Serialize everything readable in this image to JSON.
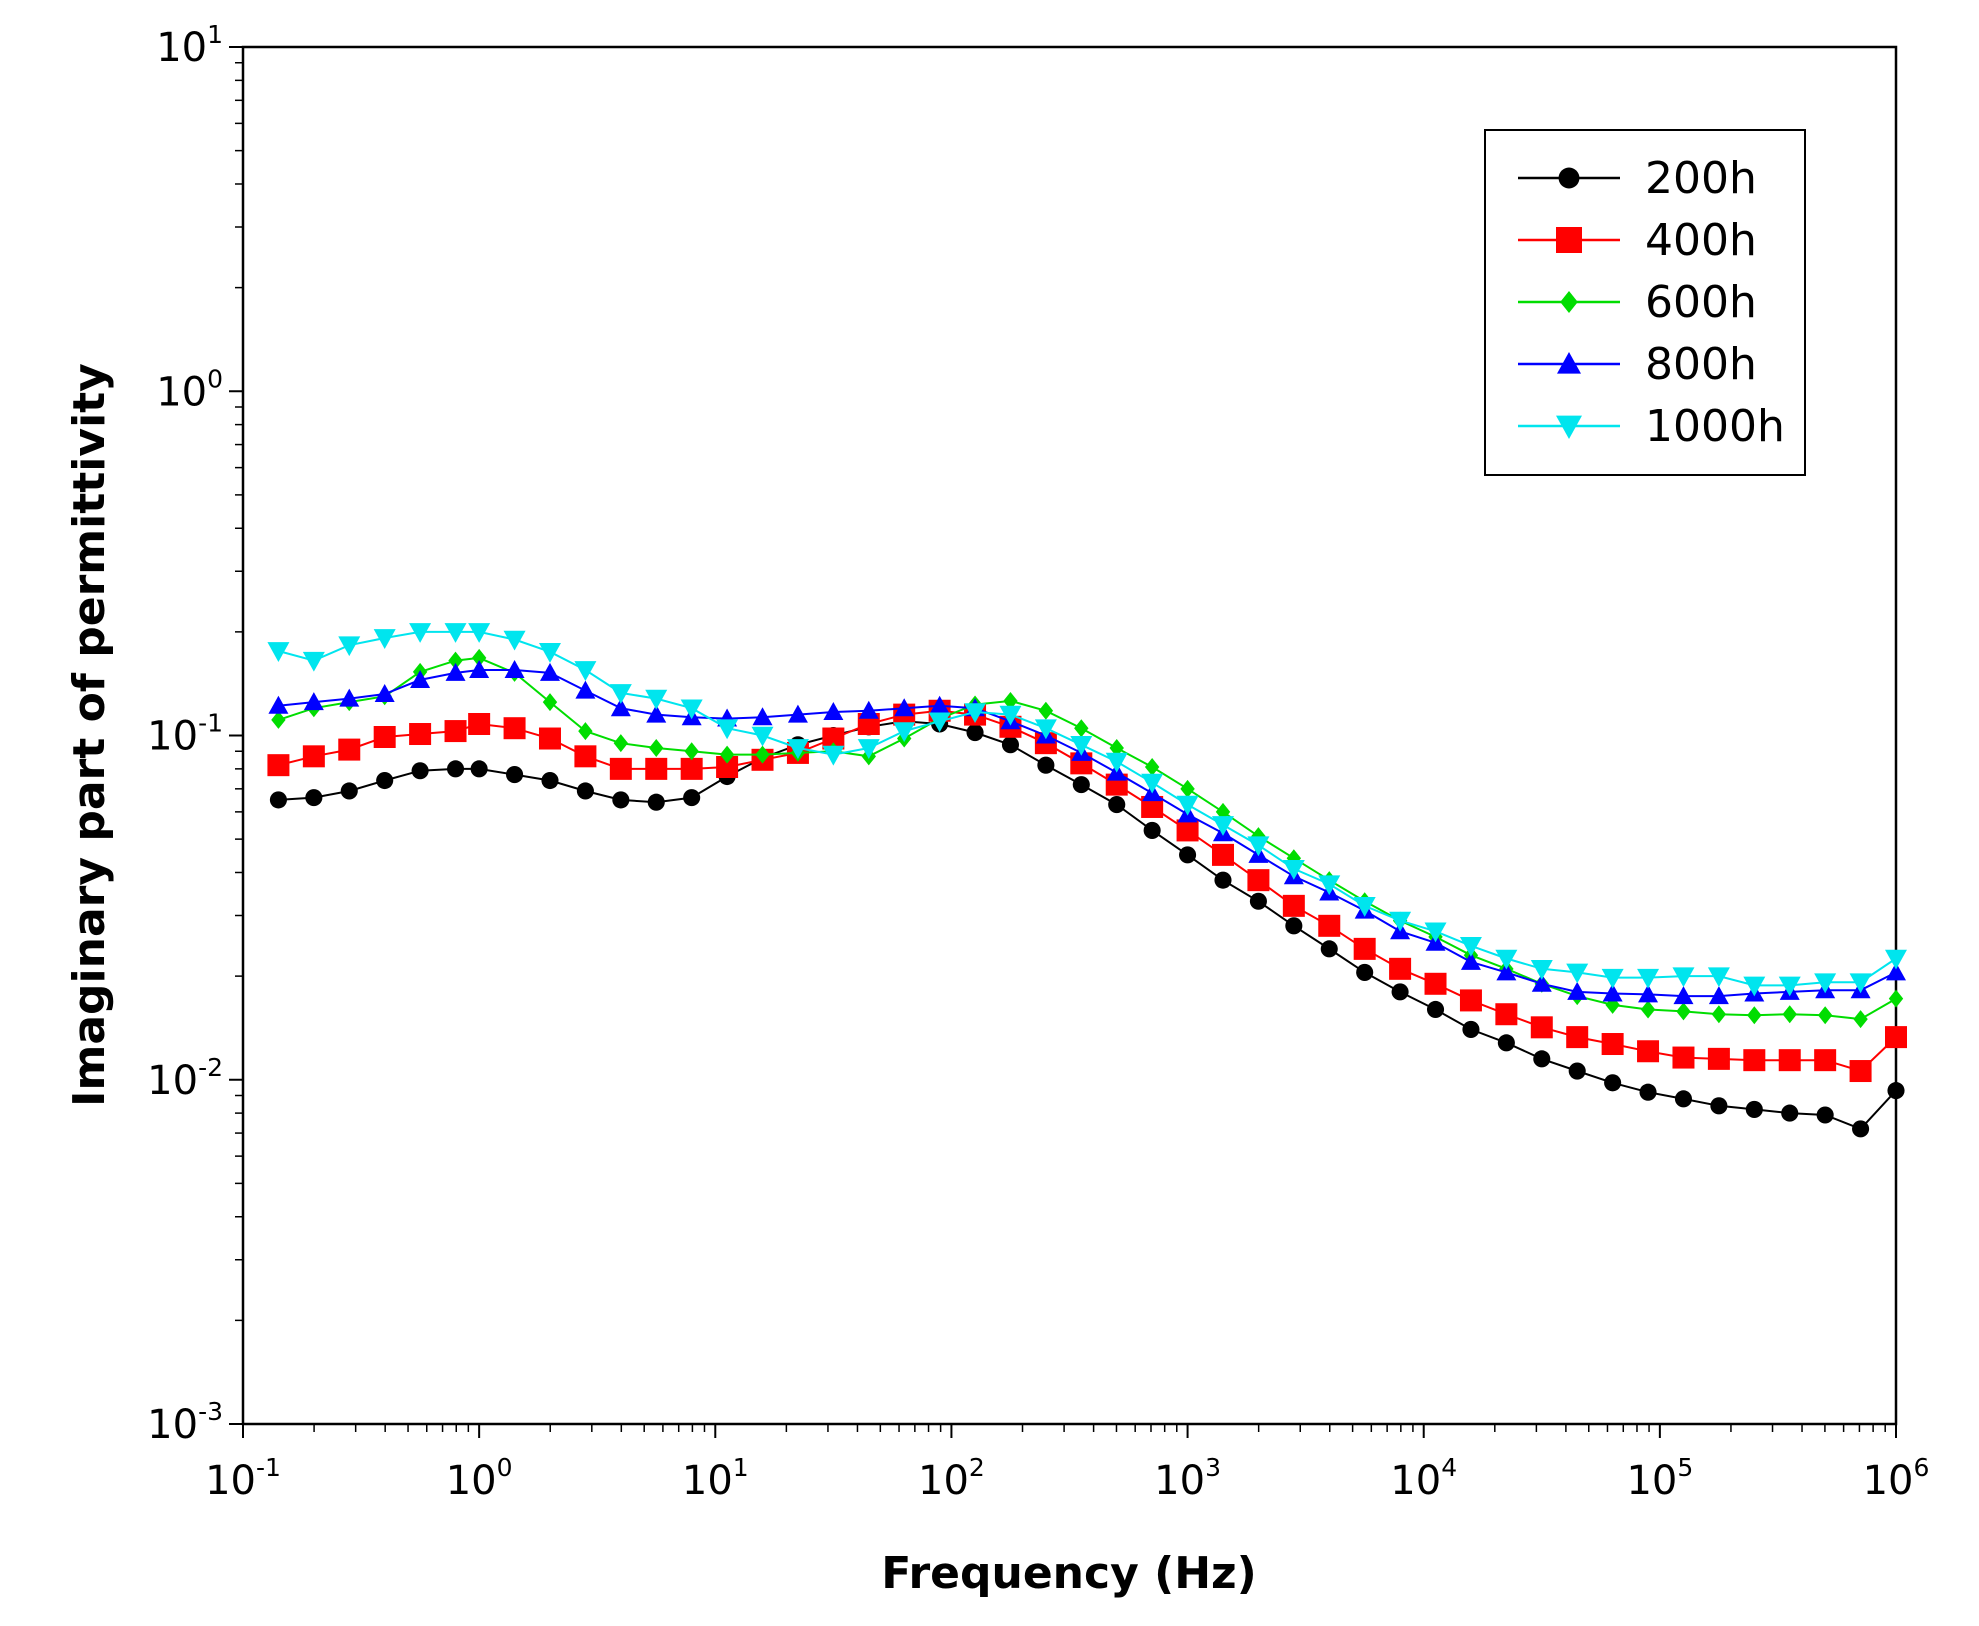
{
  "chart_data": {
    "type": "line",
    "xscale": "log",
    "yscale": "log",
    "xlabel": "Frequency (Hz)",
    "ylabel": "Imaginary part of permittivity",
    "xlim": [
      0.1,
      1000000
    ],
    "ylim": [
      0.001,
      10
    ],
    "grid": false,
    "legend_position": "top-right",
    "x_ticks": [
      {
        "base": "10",
        "exp": "-1",
        "value": 0.1
      },
      {
        "base": "10",
        "exp": "0",
        "value": 1
      },
      {
        "base": "10",
        "exp": "1",
        "value": 10
      },
      {
        "base": "10",
        "exp": "2",
        "value": 100
      },
      {
        "base": "10",
        "exp": "3",
        "value": 1000
      },
      {
        "base": "10",
        "exp": "4",
        "value": 10000
      },
      {
        "base": "10",
        "exp": "5",
        "value": 100000
      },
      {
        "base": "10",
        "exp": "6",
        "value": 1000000
      }
    ],
    "y_ticks": [
      {
        "base": "10",
        "exp": "-3",
        "value": 0.001
      },
      {
        "base": "10",
        "exp": "-2",
        "value": 0.01
      },
      {
        "base": "10",
        "exp": "-1",
        "value": 0.1
      },
      {
        "base": "10",
        "exp": "0",
        "value": 1
      },
      {
        "base": "10",
        "exp": "1",
        "value": 10
      }
    ],
    "x_log10": [
      -0.85,
      -0.7,
      -0.55,
      -0.4,
      -0.25,
      -0.1,
      0.0,
      0.15,
      0.3,
      0.45,
      0.6,
      0.75,
      0.9,
      1.05,
      1.2,
      1.35,
      1.5,
      1.65,
      1.8,
      1.95,
      2.1,
      2.25,
      2.4,
      2.55,
      2.7,
      2.85,
      3.0,
      3.15,
      3.3,
      3.45,
      3.6,
      3.75,
      3.9,
      4.05,
      4.2,
      4.35,
      4.5,
      4.65,
      4.8,
      4.95,
      5.1,
      5.25,
      5.4,
      5.55,
      5.7,
      5.85,
      6.0
    ],
    "series": [
      {
        "name": "200h",
        "color": "#000000",
        "marker": "circle",
        "values": [
          0.065,
          0.066,
          0.069,
          0.074,
          0.079,
          0.08,
          0.08,
          0.077,
          0.074,
          0.069,
          0.065,
          0.064,
          0.066,
          0.076,
          0.086,
          0.094,
          0.1,
          0.106,
          0.11,
          0.108,
          0.102,
          0.094,
          0.082,
          0.072,
          0.063,
          0.053,
          0.045,
          0.038,
          0.033,
          0.028,
          0.024,
          0.0205,
          0.018,
          0.016,
          0.014,
          0.0128,
          0.0115,
          0.0106,
          0.0098,
          0.0092,
          0.0088,
          0.0084,
          0.0082,
          0.008,
          0.0079,
          0.0072,
          0.0093
        ]
      },
      {
        "name": "400h",
        "color": "#ff0000",
        "marker": "square",
        "values": [
          0.082,
          0.087,
          0.091,
          0.099,
          0.101,
          0.103,
          0.108,
          0.105,
          0.098,
          0.087,
          0.08,
          0.08,
          0.08,
          0.081,
          0.085,
          0.089,
          0.098,
          0.108,
          0.115,
          0.118,
          0.115,
          0.106,
          0.095,
          0.083,
          0.072,
          0.062,
          0.053,
          0.045,
          0.038,
          0.032,
          0.028,
          0.024,
          0.021,
          0.019,
          0.017,
          0.0155,
          0.0142,
          0.0133,
          0.0127,
          0.0121,
          0.0116,
          0.0115,
          0.0114,
          0.0114,
          0.0114,
          0.0106,
          0.0133
        ]
      },
      {
        "name": "600h",
        "color": "#00dd00",
        "marker": "diamond",
        "values": [
          0.111,
          0.12,
          0.125,
          0.13,
          0.153,
          0.165,
          0.168,
          0.152,
          0.125,
          0.103,
          0.095,
          0.092,
          0.09,
          0.088,
          0.088,
          0.089,
          0.09,
          0.087,
          0.098,
          0.112,
          0.123,
          0.126,
          0.118,
          0.105,
          0.092,
          0.081,
          0.07,
          0.06,
          0.051,
          0.044,
          0.038,
          0.033,
          0.029,
          0.026,
          0.023,
          0.021,
          0.019,
          0.0175,
          0.0165,
          0.016,
          0.0158,
          0.0155,
          0.0154,
          0.0155,
          0.0154,
          0.015,
          0.0172
        ]
      },
      {
        "name": "800h",
        "color": "#0000ff",
        "marker": "triangle-up",
        "values": [
          0.122,
          0.125,
          0.128,
          0.132,
          0.145,
          0.152,
          0.155,
          0.155,
          0.152,
          0.135,
          0.12,
          0.115,
          0.113,
          0.112,
          0.113,
          0.115,
          0.117,
          0.118,
          0.12,
          0.122,
          0.12,
          0.11,
          0.1,
          0.089,
          0.078,
          0.068,
          0.059,
          0.052,
          0.045,
          0.039,
          0.035,
          0.031,
          0.027,
          0.025,
          0.022,
          0.0205,
          0.019,
          0.018,
          0.0178,
          0.0177,
          0.0175,
          0.0175,
          0.0178,
          0.018,
          0.0182,
          0.0182,
          0.0205
        ]
      },
      {
        "name": "1000h",
        "color": "#00e5ee",
        "marker": "triangle-down",
        "values": [
          0.176,
          0.165,
          0.183,
          0.192,
          0.2,
          0.2,
          0.2,
          0.19,
          0.175,
          0.155,
          0.133,
          0.128,
          0.12,
          0.105,
          0.1,
          0.092,
          0.088,
          0.092,
          0.103,
          0.11,
          0.117,
          0.115,
          0.105,
          0.094,
          0.084,
          0.073,
          0.063,
          0.055,
          0.048,
          0.041,
          0.037,
          0.032,
          0.029,
          0.027,
          0.0245,
          0.0225,
          0.021,
          0.0205,
          0.0198,
          0.0198,
          0.02,
          0.02,
          0.0188,
          0.0188,
          0.0192,
          0.0192,
          0.0225
        ]
      }
    ]
  }
}
